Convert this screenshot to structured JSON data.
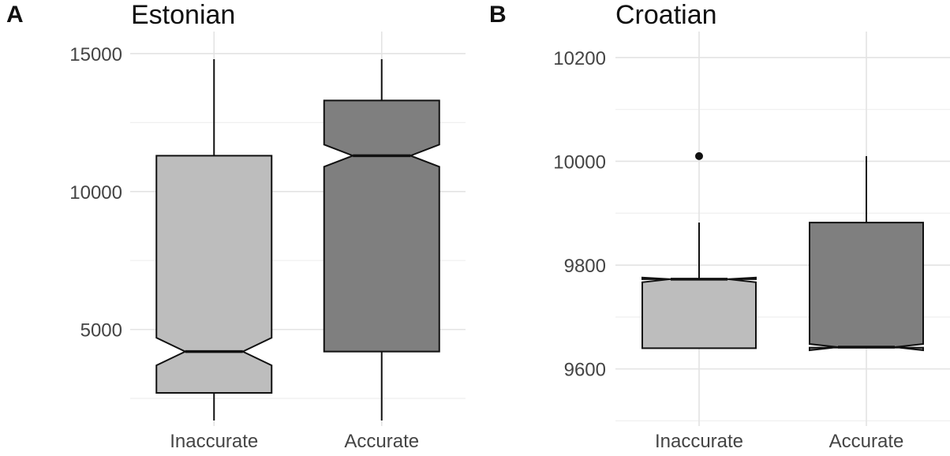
{
  "chart_data": [
    {
      "type": "boxplot",
      "tag": "A",
      "title": "Estonian",
      "categories": [
        "Inaccurate",
        "Accurate"
      ],
      "yticks": [
        5000,
        10000,
        15000
      ],
      "ylim": [
        1500,
        15800
      ],
      "notched": true,
      "boxes": [
        {
          "category": "Inaccurate",
          "min": 1700,
          "q1": 2700,
          "median": 4200,
          "q3": 11300,
          "max": 14800,
          "notch_low": 3700,
          "notch_high": 4700,
          "fill": "#bdbdbd"
        },
        {
          "category": "Accurate",
          "min": 1700,
          "q1": 4200,
          "median": 11300,
          "q3": 13300,
          "max": 14800,
          "notch_low": 10900,
          "notch_high": 11700,
          "fill": "#7f7f7f"
        }
      ],
      "outliers": [],
      "grid": true
    },
    {
      "type": "boxplot",
      "tag": "B",
      "title": "Croatian",
      "categories": [
        "Inaccurate",
        "Accurate"
      ],
      "yticks": [
        9600,
        9800,
        10000,
        10200
      ],
      "ylim": [
        9490,
        10250
      ],
      "notched": true,
      "boxes": [
        {
          "category": "Inaccurate",
          "min": 9640,
          "q1": 9640,
          "median": 9773,
          "q3": 9773,
          "max": 9882,
          "notch_low": 9767,
          "notch_high": 9776,
          "fill": "#bdbdbd"
        },
        {
          "category": "Accurate",
          "min": 9640,
          "q1": 9641,
          "median": 9642,
          "q3": 9882,
          "max": 10010,
          "notch_low": 9636,
          "notch_high": 9648,
          "fill": "#7f7f7f"
        }
      ],
      "outliers": [
        {
          "category": "Inaccurate",
          "value": 10010
        }
      ],
      "grid": true
    }
  ]
}
